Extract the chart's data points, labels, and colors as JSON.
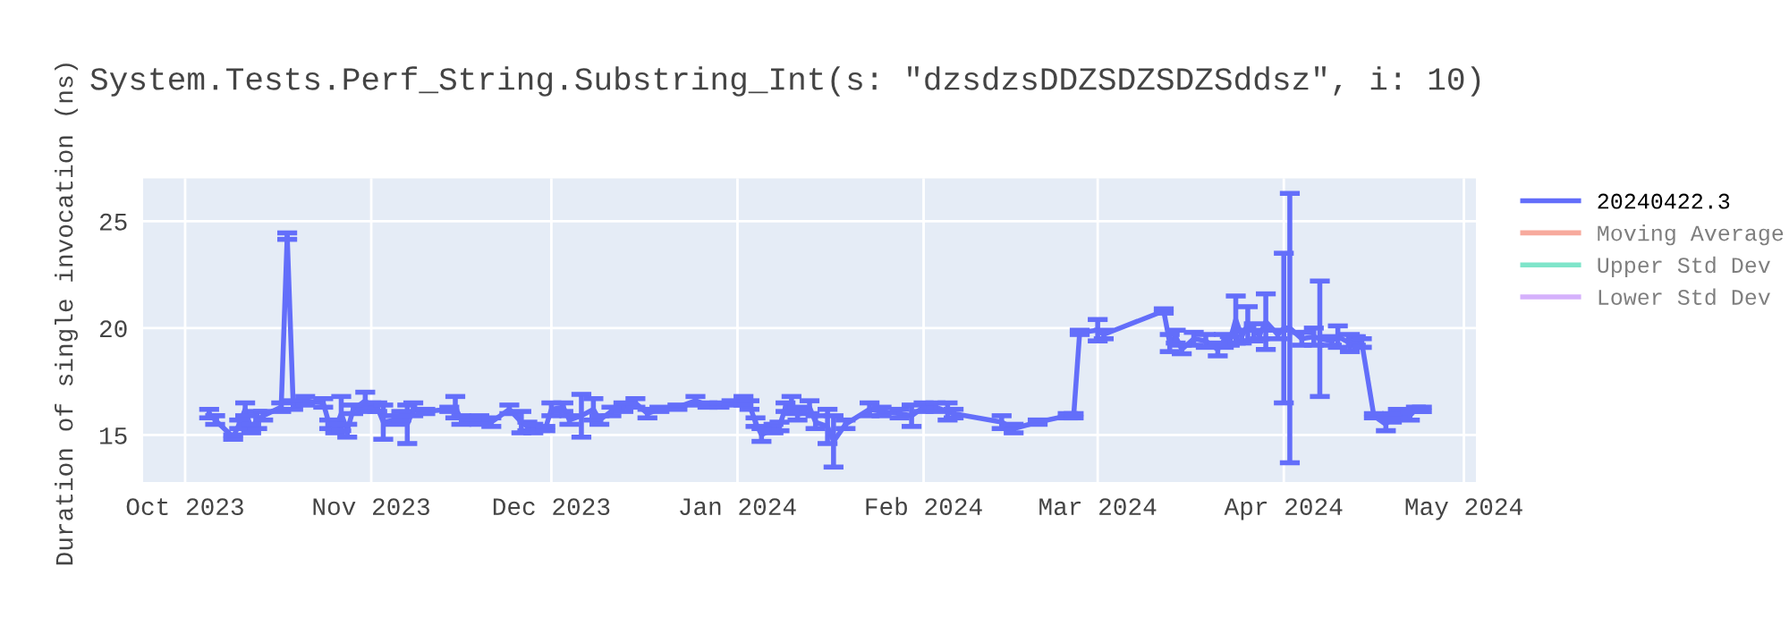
{
  "chart_data": {
    "type": "line",
    "title": "System.Tests.Perf_String.Substring_Int(s: \"dzsdzsDDZSDZSDZSddsz\", i: 10)",
    "ylabel": "Duration of single invocation (ns)",
    "xlim": [
      "2023-09-24",
      "2024-05-03"
    ],
    "ylim": [
      12.8,
      27
    ],
    "xticks": [
      {
        "value": "2023-10-01",
        "label": "Oct 2023"
      },
      {
        "value": "2023-11-01",
        "label": "Nov 2023"
      },
      {
        "value": "2023-12-01",
        "label": "Dec 2023"
      },
      {
        "value": "2024-01-01",
        "label": "Jan 2024"
      },
      {
        "value": "2024-02-01",
        "label": "Feb 2024"
      },
      {
        "value": "2024-03-01",
        "label": "Mar 2024"
      },
      {
        "value": "2024-04-01",
        "label": "Apr 2024"
      },
      {
        "value": "2024-05-01",
        "label": "May 2024"
      }
    ],
    "yticks": [
      15,
      20,
      25
    ],
    "grid": true,
    "legend": "right",
    "marker": "none",
    "line_style": "solid",
    "series": [
      {
        "name": "20240422.3",
        "color": "#636efa",
        "x": [
          "2023-10-05",
          "2023-10-06",
          "2023-10-09",
          "2023-10-10",
          "2023-10-11",
          "2023-10-12",
          "2023-10-13",
          "2023-10-14",
          "2023-10-17",
          "2023-10-18",
          "2023-10-19",
          "2023-10-21",
          "2023-10-24",
          "2023-10-25",
          "2023-10-26",
          "2023-10-27",
          "2023-10-28",
          "2023-10-29",
          "2023-10-31",
          "2023-11-01",
          "2023-11-02",
          "2023-11-03",
          "2023-11-05",
          "2023-11-06",
          "2023-11-07",
          "2023-11-08",
          "2023-11-10",
          "2023-11-14",
          "2023-11-15",
          "2023-11-16",
          "2023-11-19",
          "2023-11-21",
          "2023-11-24",
          "2023-11-26",
          "2023-11-27",
          "2023-11-28",
          "2023-11-30",
          "2023-12-01",
          "2023-12-03",
          "2023-12-04",
          "2023-12-06",
          "2023-12-08",
          "2023-12-09",
          "2023-12-11",
          "2023-12-13",
          "2023-12-15",
          "2023-12-17",
          "2023-12-19",
          "2023-12-22",
          "2023-12-25",
          "2023-12-27",
          "2023-12-29",
          "2023-12-31",
          "2024-01-02",
          "2024-01-03",
          "2024-01-04",
          "2024-01-05",
          "2024-01-07",
          "2024-01-08",
          "2024-01-09",
          "2024-01-10",
          "2024-01-11",
          "2024-01-13",
          "2024-01-14",
          "2024-01-16",
          "2024-01-17",
          "2024-01-19",
          "2024-01-23",
          "2024-01-25",
          "2024-01-28",
          "2024-01-30",
          "2024-02-01",
          "2024-02-03",
          "2024-02-05",
          "2024-02-06",
          "2024-02-14",
          "2024-02-16",
          "2024-02-20",
          "2024-02-25",
          "2024-02-26",
          "2024-02-27",
          "2024-03-01",
          "2024-03-02",
          "2024-03-12",
          "2024-03-13",
          "2024-03-14",
          "2024-03-15",
          "2024-03-17",
          "2024-03-19",
          "2024-03-21",
          "2024-03-22",
          "2024-03-23",
          "2024-03-24",
          "2024-03-25",
          "2024-03-26",
          "2024-03-27",
          "2024-03-28",
          "2024-03-29",
          "2024-03-31",
          "2024-04-01",
          "2024-04-02",
          "2024-04-04",
          "2024-04-06",
          "2024-04-07",
          "2024-04-09",
          "2024-04-10",
          "2024-04-12",
          "2024-04-13",
          "2024-04-14",
          "2024-04-16",
          "2024-04-18",
          "2024-04-19",
          "2024-04-20",
          "2024-04-22",
          "2024-04-23",
          "2024-04-24"
        ],
        "values": [
          16.0,
          15.7,
          14.9,
          15.5,
          16.2,
          15.3,
          15.7,
          15.9,
          16.3,
          24.3,
          16.4,
          16.6,
          16.5,
          15.5,
          15.3,
          16.0,
          15.2,
          16.2,
          16.6,
          16.3,
          16.3,
          15.6,
          15.7,
          15.9,
          15.5,
          16.2,
          16.1,
          16.2,
          16.3,
          15.7,
          15.7,
          15.6,
          16.2,
          15.6,
          15.4,
          15.3,
          15.3,
          16.2,
          16.3,
          15.7,
          15.9,
          16.2,
          15.7,
          16.1,
          16.3,
          16.5,
          16.0,
          16.2,
          16.3,
          16.6,
          16.4,
          16.4,
          16.5,
          16.6,
          16.4,
          15.6,
          15.0,
          15.3,
          15.4,
          16.3,
          16.4,
          16.0,
          16.3,
          15.6,
          15.4,
          14.7,
          15.5,
          16.2,
          16.1,
          16.0,
          15.9,
          16.3,
          16.3,
          16.1,
          16.0,
          15.6,
          15.3,
          15.6,
          15.9,
          15.9,
          19.8,
          19.9,
          19.7,
          20.8,
          19.3,
          19.6,
          19.0,
          19.5,
          19.4,
          19.0,
          19.4,
          19.4,
          20.4,
          19.6,
          20.2,
          19.8,
          19.7,
          20.3,
          19.7,
          20.0,
          20.0,
          19.5,
          19.6,
          19.5,
          19.4,
          19.6,
          19.3,
          19.4,
          19.3,
          15.9,
          15.5,
          15.8,
          16.0,
          15.9,
          16.2,
          16.2
        ],
        "errors": [
          0.2,
          0.2,
          0.1,
          0.2,
          0.3,
          0.2,
          0.4,
          0.2,
          0.2,
          0.15,
          0.2,
          0.2,
          0.2,
          0.2,
          0.2,
          0.8,
          0.3,
          0.2,
          0.4,
          0.2,
          0.2,
          0.8,
          0.2,
          0.2,
          0.9,
          0.3,
          0.1,
          0.1,
          0.5,
          0.2,
          0.2,
          0.2,
          0.2,
          0.5,
          0.2,
          0.2,
          0.1,
          0.3,
          0.2,
          0.2,
          1.0,
          0.5,
          0.2,
          0.2,
          0.2,
          0.2,
          0.2,
          0.1,
          0.1,
          0.2,
          0.1,
          0.1,
          0.1,
          0.2,
          0.2,
          0.2,
          0.3,
          0.2,
          0.2,
          0.2,
          0.4,
          0.3,
          0.3,
          0.3,
          0.8,
          1.2,
          0.2,
          0.3,
          0.2,
          0.2,
          0.5,
          0.2,
          0.2,
          0.4,
          0.2,
          0.3,
          0.2,
          0.1,
          0.1,
          0.1,
          0.1,
          0.5,
          0.2,
          0.1,
          0.4,
          0.3,
          0.2,
          0.3,
          0.3,
          0.3,
          0.3,
          0.2,
          1.1,
          0.3,
          0.8,
          0.4,
          0.2,
          1.3,
          0.2,
          3.5,
          6.3,
          0.3,
          0.4,
          2.7,
          0.2,
          0.5,
          0.4,
          0.2,
          0.2,
          0.1,
          0.3,
          0.2,
          0.2,
          0.2,
          0.1,
          0.1
        ]
      },
      {
        "name": "Moving Average",
        "color": "#ef553b",
        "values": [
          null
        ]
      },
      {
        "name": "Upper Std Dev",
        "color": "#00cc96",
        "values": [
          null
        ]
      },
      {
        "name": "Lower Std Dev",
        "color": "#ab63fa",
        "values": [
          null
        ]
      }
    ]
  }
}
